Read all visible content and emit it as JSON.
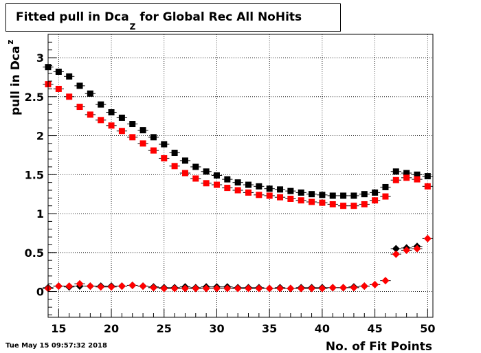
{
  "title": {
    "prefix": "Fitted pull in Dca",
    "subscript": "Z",
    "suffix": "for Global Rec All NoHits"
  },
  "timestamp": "Tue May 15 09:57:32 2018",
  "chart_data": {
    "type": "scatter",
    "xlabel": "No. of Fit Points",
    "ylabel": {
      "main": "pull in Dca",
      "subscript": "z"
    },
    "xlim": [
      14,
      50.5
    ],
    "ylim": [
      -0.33,
      3.3
    ],
    "xticks": [
      "15",
      "20",
      "25",
      "30",
      "35",
      "40",
      "45",
      "50"
    ],
    "yticks": [
      "0",
      "0.5",
      "1",
      "1.5",
      "2",
      "2.5",
      "3"
    ],
    "grid": true,
    "x": [
      14,
      15,
      16,
      17,
      18,
      19,
      20,
      21,
      22,
      23,
      24,
      25,
      26,
      27,
      28,
      29,
      30,
      31,
      32,
      33,
      34,
      35,
      36,
      37,
      38,
      39,
      40,
      41,
      42,
      43,
      44,
      45,
      46,
      47,
      48,
      49,
      50
    ],
    "series": [
      {
        "marker": "square",
        "color": "#000000",
        "values": [
          2.88,
          2.82,
          2.76,
          2.64,
          2.54,
          2.4,
          2.3,
          2.23,
          2.15,
          2.07,
          1.98,
          1.89,
          1.78,
          1.68,
          1.6,
          1.54,
          1.49,
          1.44,
          1.4,
          1.37,
          1.35,
          1.32,
          1.31,
          1.29,
          1.27,
          1.25,
          1.24,
          1.23,
          1.23,
          1.23,
          1.25,
          1.27,
          1.34,
          1.54,
          1.52,
          1.5,
          1.48
        ]
      },
      {
        "marker": "square",
        "color": "#ff0000",
        "values": [
          2.66,
          2.6,
          2.5,
          2.37,
          2.27,
          2.2,
          2.13,
          2.06,
          1.98,
          1.9,
          1.81,
          1.71,
          1.61,
          1.52,
          1.45,
          1.39,
          1.37,
          1.33,
          1.3,
          1.27,
          1.24,
          1.23,
          1.21,
          1.19,
          1.17,
          1.15,
          1.14,
          1.12,
          1.1,
          1.1,
          1.12,
          1.17,
          1.22,
          1.43,
          1.46,
          1.44,
          1.35
        ]
      },
      {
        "marker": "diamond",
        "color": "#000000",
        "values": [
          0.05,
          0.07,
          0.06,
          0.07,
          0.07,
          0.07,
          0.07,
          0.07,
          0.08,
          0.07,
          0.06,
          0.05,
          0.05,
          0.06,
          0.05,
          0.06,
          0.06,
          0.06,
          0.05,
          0.05,
          0.05,
          0.04,
          0.05,
          0.04,
          0.05,
          0.05,
          0.05,
          0.05,
          0.05,
          0.06,
          0.07,
          null,
          null,
          0.55,
          0.56,
          0.58,
          null
        ]
      },
      {
        "marker": "diamond",
        "color": "#ff0000",
        "values": [
          0.04,
          0.07,
          0.07,
          0.1,
          0.07,
          0.06,
          0.06,
          0.07,
          0.08,
          0.07,
          0.05,
          0.04,
          0.04,
          0.04,
          0.04,
          0.04,
          0.04,
          0.04,
          0.04,
          0.04,
          0.04,
          0.04,
          0.04,
          0.04,
          0.04,
          0.04,
          0.04,
          0.05,
          0.05,
          0.05,
          0.07,
          0.09,
          0.14,
          0.48,
          0.53,
          0.55,
          0.68
        ]
      }
    ]
  }
}
